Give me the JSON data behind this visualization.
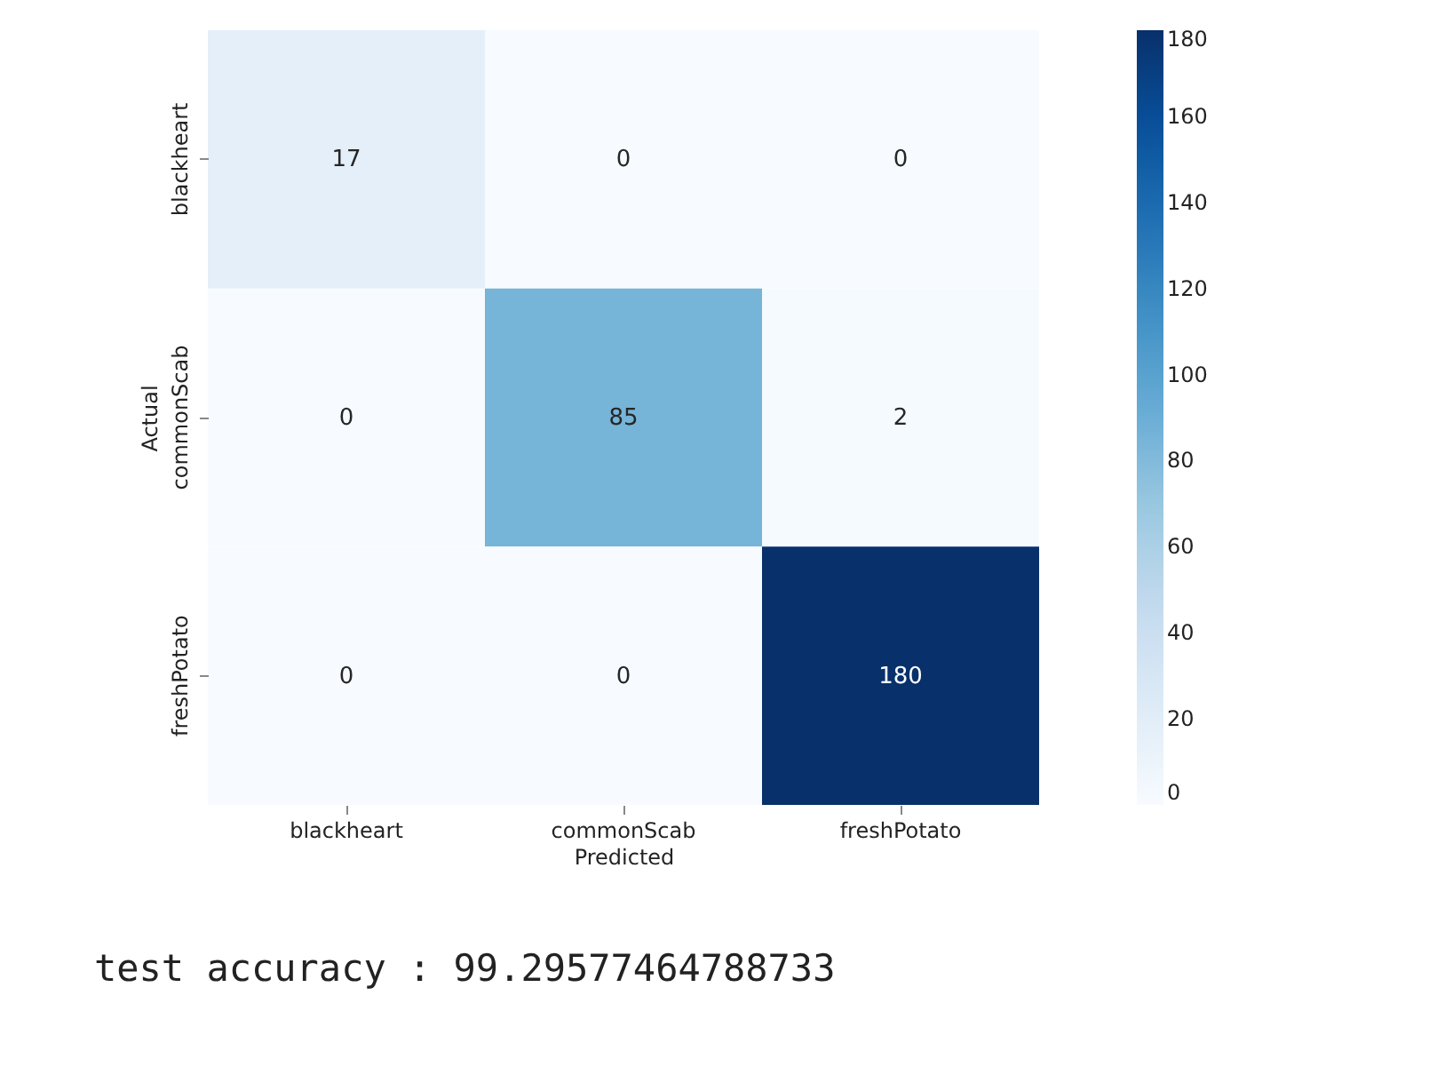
{
  "chart_data": {
    "type": "heatmap",
    "xlabel": "Predicted",
    "ylabel": "Actual",
    "categories": [
      "blackheart",
      "commonScab",
      "freshPotato"
    ],
    "y_categories": [
      "blackheart",
      "commonScab",
      "freshPotato"
    ],
    "cells": [
      [
        17,
        0,
        0
      ],
      [
        0,
        85,
        2
      ],
      [
        0,
        0,
        180
      ]
    ],
    "data_labels": true,
    "clim": [
      0,
      180
    ],
    "cticks": [
      0,
      20,
      40,
      60,
      80,
      100,
      120,
      140,
      160,
      180
    ],
    "annotations": [
      "test accuracy : 99.29577464788733"
    ]
  }
}
